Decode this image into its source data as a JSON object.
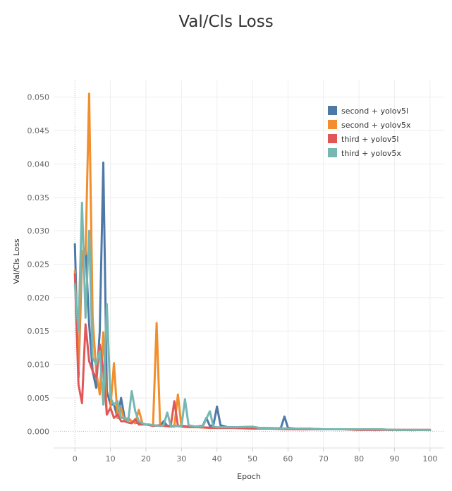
{
  "chart_data": {
    "type": "line",
    "title": "Val/Cls Loss",
    "xlabel": "Epoch",
    "ylabel": "Val/Cls Loss",
    "xlim": [
      -6,
      104
    ],
    "ylim": [
      -0.0025,
      0.0525
    ],
    "x_ticks": [
      0,
      10,
      20,
      30,
      40,
      50,
      60,
      70,
      80,
      90,
      100
    ],
    "y_ticks": [
      0.0,
      0.005,
      0.01,
      0.015,
      0.02,
      0.025,
      0.03,
      0.035,
      0.04,
      0.045,
      0.05
    ],
    "y_tick_labels": [
      "0.000",
      "0.005",
      "0.010",
      "0.015",
      "0.020",
      "0.025",
      "0.030",
      "0.035",
      "0.040",
      "0.045",
      "0.050"
    ],
    "grid": true,
    "legend_position": "top-right",
    "series": [
      {
        "name": "second + yolov5l",
        "color": "#4e79a7",
        "points": [
          [
            0,
            0.028
          ],
          [
            1,
            0.008
          ],
          [
            2,
            0.026
          ],
          [
            3,
            0.0275
          ],
          [
            4,
            0.016
          ],
          [
            5,
            0.009
          ],
          [
            6,
            0.0065
          ],
          [
            7,
            0.015
          ],
          [
            8,
            0.0402
          ],
          [
            9,
            0.006
          ],
          [
            10,
            0.004
          ],
          [
            11,
            0.004
          ],
          [
            12,
            0.002
          ],
          [
            13,
            0.005
          ],
          [
            14,
            0.002
          ],
          [
            15,
            0.0018
          ],
          [
            16,
            0.0015
          ],
          [
            17,
            0.0013
          ],
          [
            18,
            0.0012
          ],
          [
            19,
            0.0011
          ],
          [
            20,
            0.001
          ],
          [
            22,
            0.0009
          ],
          [
            24,
            0.0008
          ],
          [
            25,
            0.0015
          ],
          [
            26,
            0.0008
          ],
          [
            28,
            0.0008
          ],
          [
            30,
            0.0008
          ],
          [
            32,
            0.0007
          ],
          [
            34,
            0.0007
          ],
          [
            36,
            0.0008
          ],
          [
            37,
            0.002
          ],
          [
            38,
            0.0008
          ],
          [
            39,
            0.0009
          ],
          [
            40,
            0.0037
          ],
          [
            41,
            0.0009
          ],
          [
            43,
            0.0006
          ],
          [
            45,
            0.0006
          ],
          [
            47,
            0.0005
          ],
          [
            50,
            0.0005
          ],
          [
            53,
            0.0005
          ],
          [
            56,
            0.0004
          ],
          [
            58,
            0.0005
          ],
          [
            59,
            0.0022
          ],
          [
            60,
            0.0005
          ],
          [
            62,
            0.0004
          ],
          [
            65,
            0.0004
          ],
          [
            70,
            0.0003
          ],
          [
            75,
            0.0003
          ],
          [
            80,
            0.0003
          ],
          [
            85,
            0.0003
          ],
          [
            90,
            0.0002
          ],
          [
            95,
            0.0002
          ],
          [
            100,
            0.0002
          ]
        ]
      },
      {
        "name": "second + yolov5x",
        "color": "#f28e2b",
        "points": [
          [
            0,
            0.024
          ],
          [
            1,
            0.009
          ],
          [
            2,
            0.027
          ],
          [
            3,
            0.0265
          ],
          [
            4,
            0.0505
          ],
          [
            5,
            0.017
          ],
          [
            6,
            0.009
          ],
          [
            7,
            0.0055
          ],
          [
            8,
            0.0148
          ],
          [
            9,
            0.0025
          ],
          [
            10,
            0.0035
          ],
          [
            11,
            0.0102
          ],
          [
            12,
            0.002
          ],
          [
            13,
            0.0035
          ],
          [
            14,
            0.0015
          ],
          [
            15,
            0.002
          ],
          [
            16,
            0.0015
          ],
          [
            17,
            0.0012
          ],
          [
            18,
            0.0032
          ],
          [
            19,
            0.0012
          ],
          [
            20,
            0.001
          ],
          [
            21,
            0.001
          ],
          [
            22,
            0.0008
          ],
          [
            23,
            0.0162
          ],
          [
            24,
            0.0008
          ],
          [
            25,
            0.0008
          ],
          [
            27,
            0.0007
          ],
          [
            28,
            0.0007
          ],
          [
            29,
            0.0055
          ],
          [
            30,
            0.0007
          ],
          [
            32,
            0.0006
          ],
          [
            35,
            0.0006
          ],
          [
            38,
            0.0005
          ],
          [
            40,
            0.0005
          ],
          [
            45,
            0.0005
          ],
          [
            50,
            0.0004
          ],
          [
            55,
            0.0004
          ],
          [
            60,
            0.0004
          ],
          [
            65,
            0.0003
          ],
          [
            70,
            0.0003
          ],
          [
            75,
            0.0003
          ],
          [
            80,
            0.0003
          ],
          [
            85,
            0.0003
          ],
          [
            90,
            0.0002
          ],
          [
            95,
            0.0002
          ],
          [
            100,
            0.0002
          ]
        ]
      },
      {
        "name": "third + yolov5l",
        "color": "#e15759",
        "points": [
          [
            0,
            0.0235
          ],
          [
            1,
            0.007
          ],
          [
            2,
            0.0042
          ],
          [
            3,
            0.016
          ],
          [
            4,
            0.0105
          ],
          [
            5,
            0.009
          ],
          [
            6,
            0.008
          ],
          [
            7,
            0.013
          ],
          [
            8,
            0.009
          ],
          [
            9,
            0.0025
          ],
          [
            10,
            0.0035
          ],
          [
            11,
            0.002
          ],
          [
            12,
            0.0025
          ],
          [
            13,
            0.0015
          ],
          [
            14,
            0.0015
          ],
          [
            15,
            0.0013
          ],
          [
            16,
            0.0012
          ],
          [
            17,
            0.0018
          ],
          [
            18,
            0.001
          ],
          [
            19,
            0.001
          ],
          [
            20,
            0.001
          ],
          [
            22,
            0.0008
          ],
          [
            24,
            0.0009
          ],
          [
            26,
            0.0008
          ],
          [
            27,
            0.0008
          ],
          [
            28,
            0.0045
          ],
          [
            29,
            0.0008
          ],
          [
            30,
            0.0007
          ],
          [
            32,
            0.0007
          ],
          [
            35,
            0.0006
          ],
          [
            40,
            0.0005
          ],
          [
            45,
            0.0005
          ],
          [
            50,
            0.0004
          ],
          [
            55,
            0.0004
          ],
          [
            60,
            0.0003
          ],
          [
            65,
            0.0003
          ],
          [
            70,
            0.0003
          ],
          [
            75,
            0.0003
          ],
          [
            80,
            0.0002
          ],
          [
            85,
            0.0002
          ],
          [
            90,
            0.0002
          ],
          [
            95,
            0.0002
          ],
          [
            100,
            0.0002
          ]
        ]
      },
      {
        "name": "third + yolov5x",
        "color": "#76b7b2",
        "points": [
          [
            0,
            0.022
          ],
          [
            1,
            0.015
          ],
          [
            2,
            0.0342
          ],
          [
            3,
            0.017
          ],
          [
            4,
            0.03
          ],
          [
            5,
            0.011
          ],
          [
            6,
            0.01
          ],
          [
            7,
            0.012
          ],
          [
            8,
            0.004
          ],
          [
            9,
            0.019
          ],
          [
            10,
            0.005
          ],
          [
            11,
            0.004
          ],
          [
            12,
            0.0045
          ],
          [
            13,
            0.002
          ],
          [
            14,
            0.002
          ],
          [
            15,
            0.0015
          ],
          [
            16,
            0.006
          ],
          [
            17,
            0.003
          ],
          [
            18,
            0.0015
          ],
          [
            19,
            0.0012
          ],
          [
            20,
            0.001
          ],
          [
            21,
            0.001
          ],
          [
            22,
            0.0009
          ],
          [
            24,
            0.0008
          ],
          [
            25,
            0.0009
          ],
          [
            26,
            0.0028
          ],
          [
            27,
            0.0008
          ],
          [
            28,
            0.0008
          ],
          [
            30,
            0.0007
          ],
          [
            31,
            0.0048
          ],
          [
            32,
            0.0009
          ],
          [
            34,
            0.0007
          ],
          [
            36,
            0.0007
          ],
          [
            38,
            0.003
          ],
          [
            39,
            0.0007
          ],
          [
            40,
            0.0006
          ],
          [
            42,
            0.0006
          ],
          [
            45,
            0.0006
          ],
          [
            50,
            0.0007
          ],
          [
            52,
            0.0005
          ],
          [
            55,
            0.0005
          ],
          [
            60,
            0.0004
          ],
          [
            65,
            0.0004
          ],
          [
            70,
            0.0003
          ],
          [
            75,
            0.0003
          ],
          [
            80,
            0.0003
          ],
          [
            85,
            0.0003
          ],
          [
            90,
            0.0002
          ],
          [
            95,
            0.0002
          ],
          [
            100,
            0.0002
          ]
        ]
      }
    ]
  }
}
